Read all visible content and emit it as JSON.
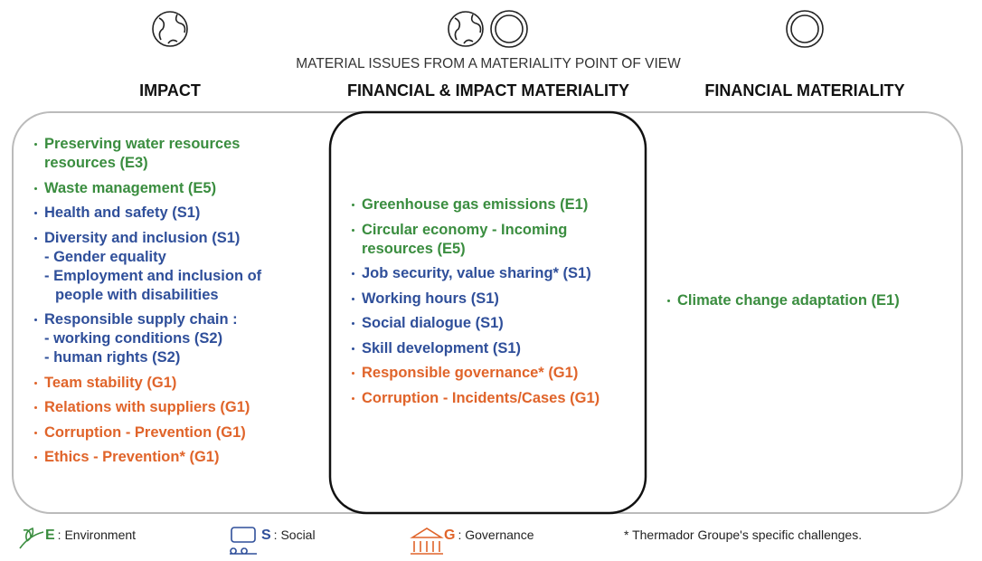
{
  "title": "MATERIAL ISSUES FROM A MATERIALITY POINT OF VIEW",
  "columns": [
    {
      "heading": "IMPACT",
      "items": [
        {
          "text": "Preserving water resources resources (E3)",
          "color": "#3a8d3f"
        },
        {
          "text": "Waste management (E5)",
          "color": "#3a8d3f"
        },
        {
          "text": "Health and safety (S1)",
          "color": "#2f4f9a"
        },
        {
          "text": "Diversity and inclusion (S1)",
          "color": "#2f4f9a",
          "sub": [
            "- Gender equality",
            "- Employment and inclusion of people with disabilities"
          ]
        },
        {
          "text": "Responsible supply chain :",
          "color": "#2f4f9a",
          "sub": [
            "- working conditions (S2)",
            "- human rights (S2)"
          ]
        },
        {
          "text": "Team stability (G1)",
          "color": "#e0642a"
        },
        {
          "text": "Relations with suppliers (G1)",
          "color": "#e0642a"
        },
        {
          "text": "Corruption - Prevention (G1)",
          "color": "#e0642a"
        },
        {
          "text": "Ethics - Prevention* (G1)",
          "color": "#e0642a"
        }
      ]
    },
    {
      "heading": "FINANCIAL & IMPACT MATERIALITY",
      "items": [
        {
          "text": "Greenhouse gas emissions (E1)",
          "color": "#3a8d3f"
        },
        {
          "text": "Circular economy - Incoming resources (E5)",
          "color": "#3a8d3f"
        },
        {
          "text": "Job security, value sharing* (S1)",
          "color": "#2f4f9a"
        },
        {
          "text": "Working hours (S1)",
          "color": "#2f4f9a"
        },
        {
          "text": "Social dialogue (S1)",
          "color": "#2f4f9a"
        },
        {
          "text": "Skill development (S1)",
          "color": "#2f4f9a"
        },
        {
          "text": "Responsible governance* (G1)",
          "color": "#e0642a"
        },
        {
          "text": "Corruption - Incidents/Cases (G1)",
          "color": "#e0642a"
        }
      ]
    },
    {
      "heading": "FINANCIAL MATERIALITY",
      "items": [
        {
          "text": "Climate change adaptation (E1)",
          "color": "#3a8d3f"
        }
      ]
    }
  ],
  "legend": [
    {
      "letter": "E",
      "label": ": Environment"
    },
    {
      "letter": "S",
      "label": ": Social"
    },
    {
      "letter": "G",
      "label": ": Governance"
    }
  ],
  "footnote": "* Thermador Groupe's specific challenges."
}
